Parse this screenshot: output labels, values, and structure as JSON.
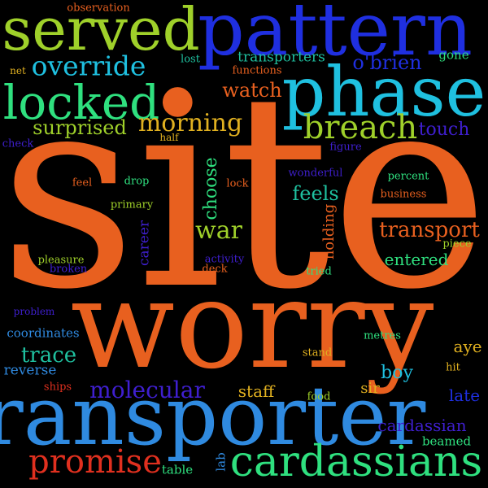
{
  "words": {
    "site": "site",
    "worry": "worry",
    "transporter": "transporter",
    "pattern": "pattern",
    "phase": "phase",
    "served": "served",
    "cardassians": "cardassians",
    "locked": "locked",
    "breach": "breach",
    "override": "override",
    "morning": "morning",
    "promise": "promise",
    "molecular": "molecular",
    "surprised": "surprised",
    "transport": "transport",
    "choose": "choose",
    "war": "war",
    "trace": "trace",
    "feels": "feels",
    "watch": "watch",
    "obrien": "o'brien",
    "transporters": "transporters",
    "touch": "touch",
    "holding": "holding",
    "entered": "entered",
    "cardassian": "cardassian",
    "boy": "boy",
    "aye": "aye",
    "staff": "staff",
    "late": "late",
    "sir": "sir",
    "career": "career",
    "reverse": "reverse",
    "coordinates": "coordinates",
    "beamed": "beamed",
    "table": "table",
    "lab": "lab",
    "gone": "gone",
    "observation": "observation",
    "functions": "functions",
    "lost": "lost",
    "net": "net",
    "check": "check",
    "half": "half",
    "figure": "figure",
    "feel": "feel",
    "drop": "drop",
    "lock": "lock",
    "wonderful": "wonderful",
    "percent": "percent",
    "business": "business",
    "primary": "primary",
    "pleasure": "pleasure",
    "broken": "broken",
    "activity": "activity",
    "deck": "deck",
    "tried": "tried",
    "piece": "piece",
    "problem": "problem",
    "metres": "metres",
    "stand": "stand",
    "hit": "hit",
    "ships": "ships",
    "food": "food"
  },
  "colors": {
    "background": "#000000",
    "orange": "#e8601f",
    "blue": "#1f2fe0",
    "sky": "#2f8ae0",
    "cyan": "#1fc0e0",
    "lime": "#9fd02a",
    "green": "#2fe07f",
    "teal": "#1fc09f",
    "gold": "#e0b020",
    "indigo": "#3f1fd0",
    "red": "#e0301f"
  }
}
